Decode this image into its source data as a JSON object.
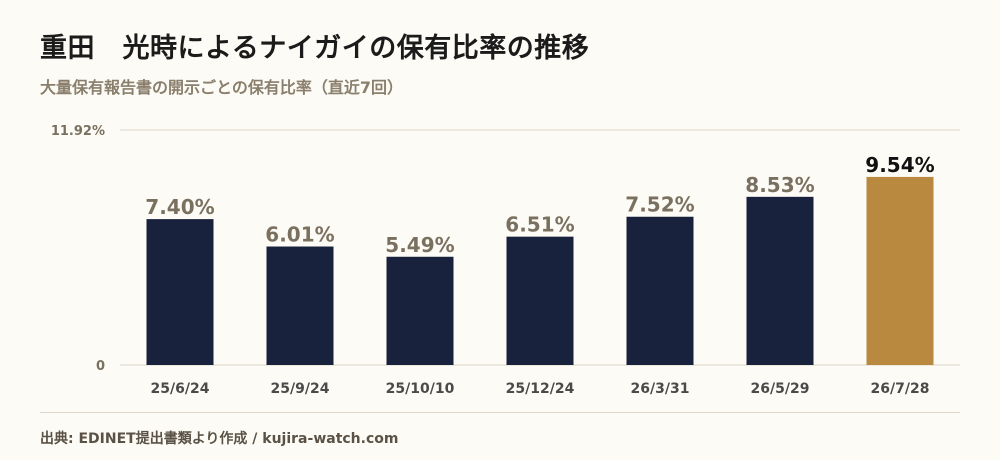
{
  "header": {
    "title": "重田　光時によるナイガイの保有比率の推移",
    "subtitle": "大量保有報告書の開示ごとの保有比率（直近7回）"
  },
  "footer": {
    "source": "出典: EDINET提出書類より作成 / kujira-watch.com"
  },
  "chart_data": {
    "type": "bar",
    "categories": [
      "25/6/24",
      "25/9/24",
      "25/10/10",
      "25/12/24",
      "26/3/31",
      "26/5/29",
      "26/7/28"
    ],
    "values": [
      7.4,
      6.01,
      5.49,
      6.51,
      7.52,
      8.53,
      9.54
    ],
    "value_labels": [
      "7.40%",
      "6.01%",
      "5.49%",
      "6.51%",
      "7.52%",
      "8.53%",
      "9.54%"
    ],
    "ylim": [
      0,
      11.92
    ],
    "y_tick_labels": [
      "0",
      "11.92%"
    ],
    "highlight_index": 6,
    "colors": {
      "bar": "#19223c",
      "highlight": "#b8893e",
      "grid": "#ddd6c6"
    },
    "grid": true
  }
}
